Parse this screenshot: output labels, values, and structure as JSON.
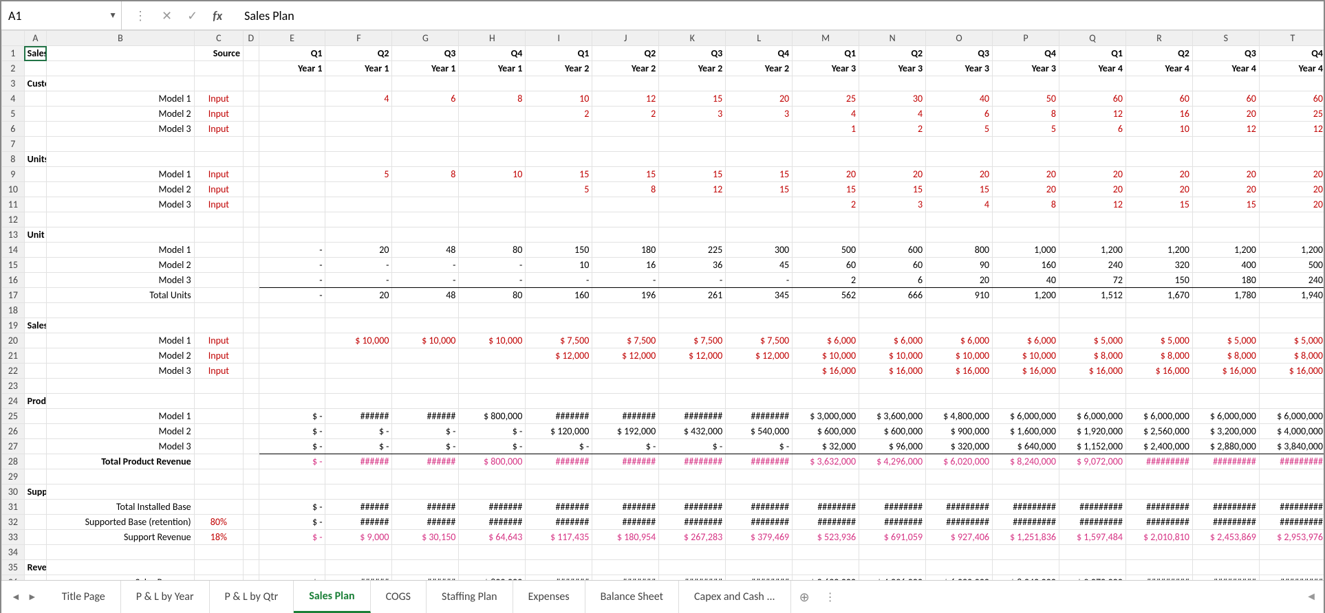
{
  "formula_bar": {
    "name_box": "A1",
    "value": "Sales Plan"
  },
  "col_headers": [
    "A",
    "B",
    "C",
    "D",
    "E",
    "F",
    "G",
    "H",
    "I",
    "J",
    "K",
    "L",
    "M",
    "N",
    "O",
    "P",
    "Q",
    "R",
    "S",
    "T"
  ],
  "header_row1": [
    "Sales Plan",
    "Source",
    "",
    "Q1",
    "Q2",
    "Q3",
    "Q4",
    "Q1",
    "Q2",
    "Q3",
    "Q4",
    "Q1",
    "Q2",
    "Q3",
    "Q4",
    "Q1",
    "Q2",
    "Q3",
    "Q4"
  ],
  "header_row2": [
    "",
    "",
    "",
    "Year 1",
    "Year 1",
    "Year 1",
    "Year 1",
    "Year 2",
    "Year 2",
    "Year 2",
    "Year 2",
    "Year 3",
    "Year 3",
    "Year 3",
    "Year 3",
    "Year 4",
    "Year 4",
    "Year 4",
    "Year 4"
  ],
  "rows": [
    {
      "n": 3,
      "b": "Customers",
      "bold": true
    },
    {
      "n": 4,
      "b": "Model 1",
      "c": "Input",
      "cred": true,
      "vals": [
        "",
        "4",
        "6",
        "8",
        "10",
        "12",
        "15",
        "20",
        "25",
        "30",
        "40",
        "50",
        "60",
        "60",
        "60",
        "60"
      ],
      "red": true
    },
    {
      "n": 5,
      "b": "Model 2",
      "c": "Input",
      "cred": true,
      "vals": [
        "",
        "",
        "",
        "",
        "2",
        "2",
        "3",
        "3",
        "4",
        "4",
        "6",
        "8",
        "12",
        "16",
        "20",
        "25"
      ],
      "red": true
    },
    {
      "n": 6,
      "b": "Model 3",
      "c": "Input",
      "cred": true,
      "vals": [
        "",
        "",
        "",
        "",
        "",
        "",
        "",
        "",
        "1",
        "2",
        "5",
        "5",
        "6",
        "10",
        "12",
        "12"
      ],
      "red": true
    },
    {
      "n": 7
    },
    {
      "n": 8,
      "b": "Units/Customer",
      "bold": true
    },
    {
      "n": 9,
      "b": "Model 1",
      "c": "Input",
      "cred": true,
      "vals": [
        "",
        "5",
        "8",
        "10",
        "15",
        "15",
        "15",
        "15",
        "20",
        "20",
        "20",
        "20",
        "20",
        "20",
        "20",
        "20"
      ],
      "red": true
    },
    {
      "n": 10,
      "b": "Model 2",
      "c": "Input",
      "cred": true,
      "vals": [
        "",
        "",
        "",
        "",
        "5",
        "8",
        "12",
        "15",
        "15",
        "15",
        "15",
        "20",
        "20",
        "20",
        "20",
        "20"
      ],
      "red": true
    },
    {
      "n": 11,
      "b": "Model 3",
      "c": "Input",
      "cred": true,
      "vals": [
        "",
        "",
        "",
        "",
        "",
        "",
        "",
        "",
        "2",
        "3",
        "4",
        "8",
        "12",
        "15",
        "15",
        "20"
      ],
      "red": true
    },
    {
      "n": 12
    },
    {
      "n": 13,
      "b": "Unit Sales",
      "bold": true
    },
    {
      "n": 14,
      "b": "Model 1",
      "vals": [
        "-",
        "20",
        "48",
        "80",
        "150",
        "180",
        "225",
        "300",
        "500",
        "600",
        "800",
        "1,000",
        "1,200",
        "1,200",
        "1,200",
        "1,200"
      ]
    },
    {
      "n": 15,
      "b": "Model 2",
      "vals": [
        "-",
        "-",
        "-",
        "-",
        "10",
        "16",
        "36",
        "45",
        "60",
        "60",
        "90",
        "160",
        "240",
        "320",
        "400",
        "500"
      ]
    },
    {
      "n": 16,
      "b": "Model 3",
      "vals": [
        "-",
        "-",
        "-",
        "-",
        "-",
        "-",
        "-",
        "-",
        "2",
        "6",
        "20",
        "40",
        "72",
        "150",
        "180",
        "240"
      ],
      "bbot": true
    },
    {
      "n": 17,
      "b": "Total Units",
      "vals": [
        "-",
        "20",
        "48",
        "80",
        "160",
        "196",
        "261",
        "345",
        "562",
        "666",
        "910",
        "1,200",
        "1,512",
        "1,670",
        "1,780",
        "1,940"
      ]
    },
    {
      "n": 18
    },
    {
      "n": 19,
      "b": "Sales Price",
      "bold": true
    },
    {
      "n": 20,
      "b": "Model 1",
      "c": "Input",
      "cred": true,
      "vals": [
        "",
        "$ 10,000",
        "$ 10,000",
        "$   10,000",
        "$    7,500",
        "$    7,500",
        "$    7,500",
        "$    7,500",
        "$     6,000",
        "$     6,000",
        "$     6,000",
        "$     6,000",
        "$     5,000",
        "$     5,000",
        "$     5,000",
        "$     5,000"
      ],
      "red": true
    },
    {
      "n": 21,
      "b": "Model 2",
      "c": "Input",
      "cred": true,
      "vals": [
        "",
        "",
        "",
        "",
        "$  12,000",
        "$  12,000",
        "$  12,000",
        "$  12,000",
        "$   10,000",
        "$   10,000",
        "$   10,000",
        "$   10,000",
        "$     8,000",
        "$     8,000",
        "$     8,000",
        "$     8,000"
      ],
      "red": true
    },
    {
      "n": 22,
      "b": "Model 3",
      "c": "Input",
      "cred": true,
      "vals": [
        "",
        "",
        "",
        "",
        "",
        "",
        "",
        "",
        "$   16,000",
        "$   16,000",
        "$   16,000",
        "$   16,000",
        "$   16,000",
        "$   16,000",
        "$   16,000",
        "$   16,000"
      ],
      "red": true
    },
    {
      "n": 23
    },
    {
      "n": 24,
      "b": "Product Revenue",
      "bold": true
    },
    {
      "n": 25,
      "b": "Model 1",
      "vals": [
        "$ -",
        "######",
        "######",
        "$ 800,000",
        "#######",
        "#######",
        "########",
        "########",
        "$ 3,000,000",
        "$ 3,600,000",
        "$ 4,800,000",
        "$ 6,000,000",
        "$ 6,000,000",
        "$ 6,000,000",
        "$ 6,000,000",
        "$ 6,000,000"
      ]
    },
    {
      "n": 26,
      "b": "Model 2",
      "vals": [
        "$ -",
        "$    -",
        "$    -",
        "$        -",
        "$ 120,000",
        "$ 192,000",
        "$ 432,000",
        "$ 540,000",
        "$   600,000",
        "$   600,000",
        "$   900,000",
        "$ 1,600,000",
        "$ 1,920,000",
        "$ 2,560,000",
        "$ 3,200,000",
        "$ 4,000,000"
      ]
    },
    {
      "n": 27,
      "b": "Model 3",
      "vals": [
        "$ -",
        "$    -",
        "$    -",
        "$        -",
        "$        -",
        "$        -",
        "$        -",
        "$        -",
        "$    32,000",
        "$    96,000",
        "$   320,000",
        "$   640,000",
        "$ 1,152,000",
        "$ 2,400,000",
        "$ 2,880,000",
        "$ 3,840,000"
      ],
      "bbot": true
    },
    {
      "n": 28,
      "b": "Total Product Revenue",
      "bold": true,
      "balign": "right",
      "vals": [
        "$ -",
        "######",
        "######",
        "$ 800,000",
        "#######",
        "#######",
        "########",
        "########",
        "$ 3,632,000",
        "$ 4,296,000",
        "$ 6,020,000",
        "$ 8,240,000",
        "$ 9,072,000",
        "#########",
        "#########",
        "#########"
      ],
      "pink": true
    },
    {
      "n": 29
    },
    {
      "n": 30,
      "b": "Support Revenue",
      "bold": true
    },
    {
      "n": 31,
      "b": "Total Installed Base",
      "vals": [
        "$ -",
        "######",
        "######",
        "#######",
        "#######",
        "#######",
        "########",
        "########",
        "########",
        "########",
        "#########",
        "#########",
        "#########",
        "#########",
        "#########",
        "#########"
      ]
    },
    {
      "n": 32,
      "b": "Supported Base (retention)",
      "c": "80%",
      "cred": true,
      "vals": [
        "$ -",
        "######",
        "######",
        "#######",
        "#######",
        "#######",
        "########",
        "########",
        "########",
        "########",
        "#########",
        "#########",
        "#########",
        "#########",
        "#########",
        "#########"
      ]
    },
    {
      "n": 33,
      "b": "Support Revenue",
      "c": "18%",
      "cred": true,
      "vals": [
        "$ -",
        "$  9,000",
        "$ 30,150",
        "$   64,643",
        "$ 117,435",
        "$ 180,954",
        "$ 267,283",
        "$ 379,469",
        "$   523,936",
        "$   691,059",
        "$   927,406",
        "$ 1,251,836",
        "$ 1,597,484",
        "$ 2,010,810",
        "$ 2,453,869",
        "$ 2,953,976"
      ],
      "pink": true
    },
    {
      "n": 34
    },
    {
      "n": 35,
      "b": "Revenue",
      "bold": true
    },
    {
      "n": 36,
      "b": "Sales Revenue",
      "vals": [
        "$ -",
        "######",
        "######",
        "$ 800,000",
        "#######",
        "#######",
        "########",
        "########",
        "$ 3,632,000",
        "$ 4,296,000",
        "$ 6,020,000",
        "$ 8,240,000",
        "$ 9,072,000",
        "#########",
        "#########",
        "#########"
      ]
    }
  ],
  "tabs": {
    "list": [
      "Title Page",
      "P & L by Year",
      "P & L by Qtr",
      "Sales Plan",
      "COGS",
      "Staffing Plan",
      "Expenses",
      "Balance Sheet",
      "Capex and Cash ..."
    ],
    "active": 3
  }
}
